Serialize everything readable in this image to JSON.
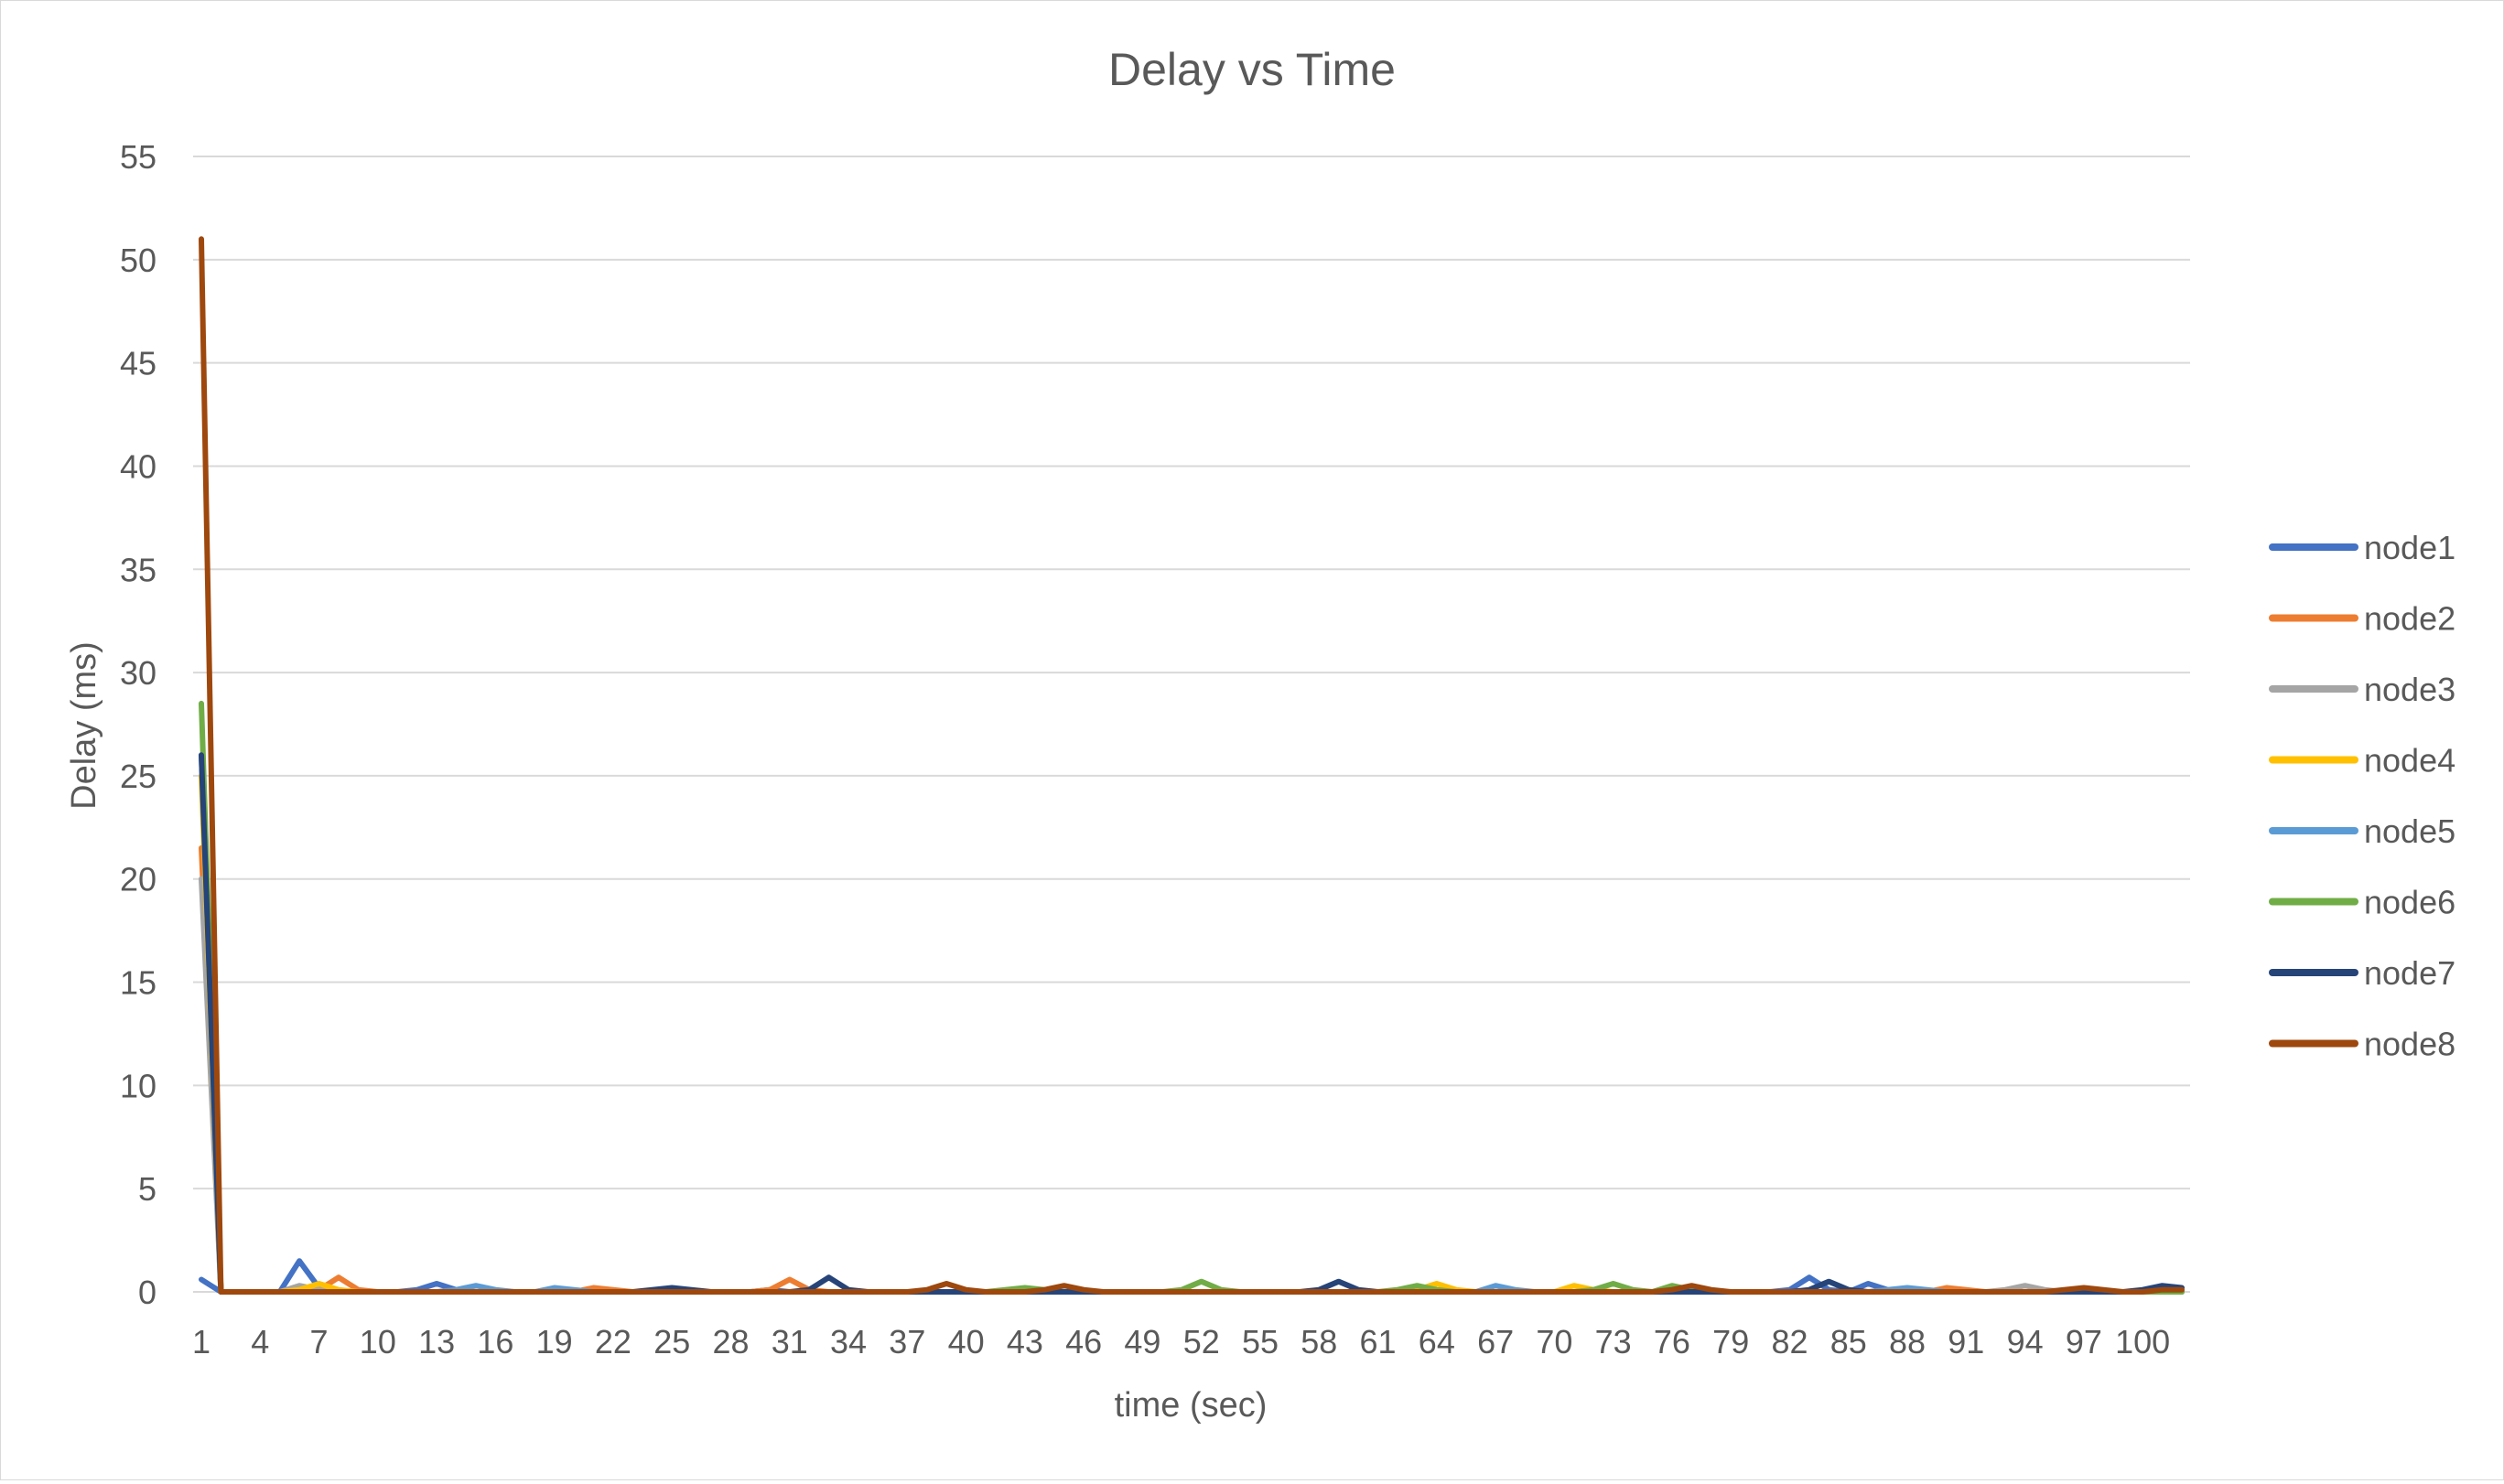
{
  "chart_data": {
    "type": "line",
    "title": "Delay vs Time",
    "xlabel": "time (sec)",
    "ylabel": "Delay (ms)",
    "ylim": [
      0,
      55
    ],
    "yticks": [
      0,
      5,
      10,
      15,
      20,
      25,
      30,
      35,
      40,
      45,
      50,
      55
    ],
    "xlim": [
      1,
      102
    ],
    "xticks": [
      1,
      4,
      7,
      10,
      13,
      16,
      19,
      22,
      25,
      28,
      31,
      34,
      37,
      40,
      43,
      46,
      49,
      52,
      55,
      58,
      61,
      64,
      67,
      70,
      73,
      76,
      79,
      82,
      85,
      88,
      91,
      94,
      97,
      100
    ],
    "grid": "horizontal",
    "legend_position": "right",
    "colors": {
      "node1": "#4472c4",
      "node2": "#ed7d31",
      "node3": "#a5a5a5",
      "node4": "#ffc000",
      "node5": "#5b9bd5",
      "node6": "#70ad47",
      "node7": "#264478",
      "node8": "#9e480e"
    },
    "series": [
      {
        "name": "node1",
        "color": "#4472c4",
        "points": [
          [
            1,
            0.6
          ],
          [
            2,
            0
          ],
          [
            3,
            0
          ],
          [
            4,
            0
          ],
          [
            5,
            0
          ],
          [
            6,
            1.5
          ],
          [
            7,
            0.2
          ],
          [
            8,
            0
          ],
          [
            12,
            0.1
          ],
          [
            13,
            0.4
          ],
          [
            14,
            0.1
          ],
          [
            30,
            0.1
          ],
          [
            82,
            0.1
          ],
          [
            83,
            0.7
          ],
          [
            84,
            0.1
          ],
          [
            86,
            0.4
          ],
          [
            87,
            0.1
          ],
          [
            102,
            0
          ]
        ]
      },
      {
        "name": "node2",
        "color": "#ed7d31",
        "points": [
          [
            1,
            21.5
          ],
          [
            2,
            0
          ],
          [
            7,
            0.1
          ],
          [
            8,
            0.7
          ],
          [
            9,
            0.1
          ],
          [
            21,
            0.2
          ],
          [
            22,
            0.1
          ],
          [
            30,
            0.1
          ],
          [
            31,
            0.6
          ],
          [
            32,
            0.1
          ],
          [
            90,
            0.2
          ],
          [
            91,
            0.1
          ],
          [
            102,
            0
          ]
        ]
      },
      {
        "name": "node3",
        "color": "#a5a5a5",
        "points": [
          [
            1,
            20
          ],
          [
            2,
            0
          ],
          [
            6,
            0.3
          ],
          [
            7,
            0.1
          ],
          [
            93,
            0.1
          ],
          [
            94,
            0.3
          ],
          [
            95,
            0.1
          ],
          [
            102,
            0
          ]
        ]
      },
      {
        "name": "node4",
        "color": "#ffc000",
        "points": [
          [
            1,
            25
          ],
          [
            2,
            0
          ],
          [
            6,
            0.1
          ],
          [
            7,
            0.4
          ],
          [
            8,
            0.1
          ],
          [
            63,
            0.1
          ],
          [
            64,
            0.4
          ],
          [
            65,
            0.1
          ],
          [
            71,
            0.3
          ],
          [
            72,
            0.1
          ],
          [
            102,
            0
          ]
        ]
      },
      {
        "name": "node5",
        "color": "#5b9bd5",
        "points": [
          [
            1,
            26
          ],
          [
            2,
            0
          ],
          [
            14,
            0.1
          ],
          [
            15,
            0.3
          ],
          [
            16,
            0.1
          ],
          [
            19,
            0.2
          ],
          [
            20,
            0.1
          ],
          [
            67,
            0.3
          ],
          [
            68,
            0.1
          ],
          [
            87,
            0.1
          ],
          [
            88,
            0.2
          ],
          [
            89,
            0.1
          ],
          [
            102,
            0
          ]
        ]
      },
      {
        "name": "node6",
        "color": "#70ad47",
        "points": [
          [
            1,
            28.5
          ],
          [
            2,
            0
          ],
          [
            42,
            0.1
          ],
          [
            43,
            0.2
          ],
          [
            44,
            0.1
          ],
          [
            51,
            0.1
          ],
          [
            52,
            0.5
          ],
          [
            53,
            0.1
          ],
          [
            62,
            0.1
          ],
          [
            63,
            0.3
          ],
          [
            64,
            0.1
          ],
          [
            72,
            0.1
          ],
          [
            73,
            0.4
          ],
          [
            74,
            0.1
          ],
          [
            76,
            0.3
          ],
          [
            77,
            0.1
          ],
          [
            102,
            0
          ]
        ]
      },
      {
        "name": "node7",
        "color": "#264478",
        "points": [
          [
            1,
            26
          ],
          [
            2,
            0
          ],
          [
            24,
            0.1
          ],
          [
            25,
            0.2
          ],
          [
            26,
            0.1
          ],
          [
            32,
            0.1
          ],
          [
            33,
            0.7
          ],
          [
            34,
            0.1
          ],
          [
            58,
            0.1
          ],
          [
            59,
            0.5
          ],
          [
            60,
            0.1
          ],
          [
            83,
            0.1
          ],
          [
            84,
            0.5
          ],
          [
            85,
            0.1
          ],
          [
            100,
            0.1
          ],
          [
            101,
            0.3
          ],
          [
            102,
            0.2
          ]
        ]
      },
      {
        "name": "node8",
        "color": "#9e480e",
        "points": [
          [
            1,
            51
          ],
          [
            2,
            0
          ],
          [
            38,
            0.1
          ],
          [
            39,
            0.4
          ],
          [
            40,
            0.1
          ],
          [
            44,
            0.1
          ],
          [
            45,
            0.3
          ],
          [
            46,
            0.1
          ],
          [
            76,
            0.1
          ],
          [
            77,
            0.3
          ],
          [
            78,
            0.1
          ],
          [
            96,
            0.1
          ],
          [
            97,
            0.2
          ],
          [
            98,
            0.1
          ],
          [
            101,
            0.1
          ],
          [
            102,
            0.1
          ]
        ]
      }
    ]
  }
}
